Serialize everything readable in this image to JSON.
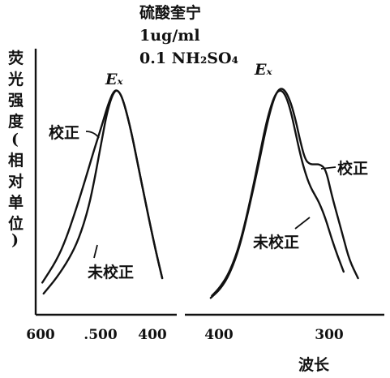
{
  "chart_data": {
    "type": "line",
    "title": "硫酸奎宁",
    "subtitle_lines": [
      "1ug/ml",
      "0.1 NH₂SO₄"
    ],
    "ylabel_chars": [
      "荧",
      "光",
      "强",
      "度",
      "(",
      "相",
      "对",
      "单",
      "位",
      ")"
    ],
    "xlabel": "波长",
    "grid": false,
    "panels": [
      {
        "name": "excitation",
        "peak_label": "Eₓ",
        "x_ticks": [
          "600",
          ".500",
          "400"
        ],
        "tick_values": [
          600,
          500,
          400
        ],
        "xlim": [
          610,
          390
        ],
        "series": [
          {
            "name": "校正",
            "x": [
              592,
              570,
              555,
              540,
              525,
              512,
              500,
              492,
              486,
              481,
              477,
              472,
              467,
              460,
              452,
              443,
              432,
              420,
              410,
              405
            ],
            "y": [
              0.08,
              0.18,
              0.28,
              0.41,
              0.55,
              0.68,
              0.79,
              0.87,
              0.92,
              0.95,
              0.96,
              0.95,
              0.92,
              0.85,
              0.75,
              0.62,
              0.46,
              0.29,
              0.16,
              0.1
            ]
          },
          {
            "name": "未校正",
            "x": [
              590,
              570,
              550,
              535,
              520,
              510,
              500,
              493,
              487,
              482,
              477,
              472,
              467,
              460,
              452,
              443,
              432,
              420,
              410,
              405
            ],
            "y": [
              0.03,
              0.1,
              0.19,
              0.28,
              0.42,
              0.56,
              0.72,
              0.83,
              0.9,
              0.94,
              0.96,
              0.95,
              0.92,
              0.85,
              0.75,
              0.62,
              0.46,
              0.29,
              0.16,
              0.1
            ]
          }
        ]
      },
      {
        "name": "emission",
        "peak_label": "Eₓ",
        "x_ticks": [
          "400",
          "300"
        ],
        "tick_values": [
          400,
          300
        ],
        "xlim": [
          420,
          290
        ],
        "series": [
          {
            "name": "校正",
            "x": [
              416,
              408,
              400,
              392,
              384,
              376,
              370,
              365,
              361,
              357,
              353,
              349,
              345,
              341,
              337,
              333,
              329,
              325,
              320,
              315,
              310,
              305,
              300,
              293
            ],
            "y": [
              0.01,
              0.05,
              0.12,
              0.24,
              0.42,
              0.62,
              0.78,
              0.89,
              0.95,
              0.97,
              0.95,
              0.9,
              0.82,
              0.72,
              0.64,
              0.62,
              0.62,
              0.62,
              0.6,
              0.48,
              0.38,
              0.28,
              0.18,
              0.1
            ]
          },
          {
            "name": "未校正",
            "x": [
              415,
              408,
              400,
              392,
              384,
              376,
              370,
              365,
              361,
              357,
              353,
              349,
              345,
              341,
              337,
              333,
              329,
              325,
              320,
              315,
              310,
              305
            ],
            "y": [
              0.02,
              0.06,
              0.13,
              0.25,
              0.43,
              0.64,
              0.8,
              0.9,
              0.95,
              0.96,
              0.93,
              0.86,
              0.76,
              0.66,
              0.58,
              0.52,
              0.48,
              0.44,
              0.37,
              0.28,
              0.2,
              0.13
            ]
          }
        ]
      }
    ],
    "annotations": [
      "校正",
      "未校正",
      "校正",
      "未校正"
    ]
  }
}
